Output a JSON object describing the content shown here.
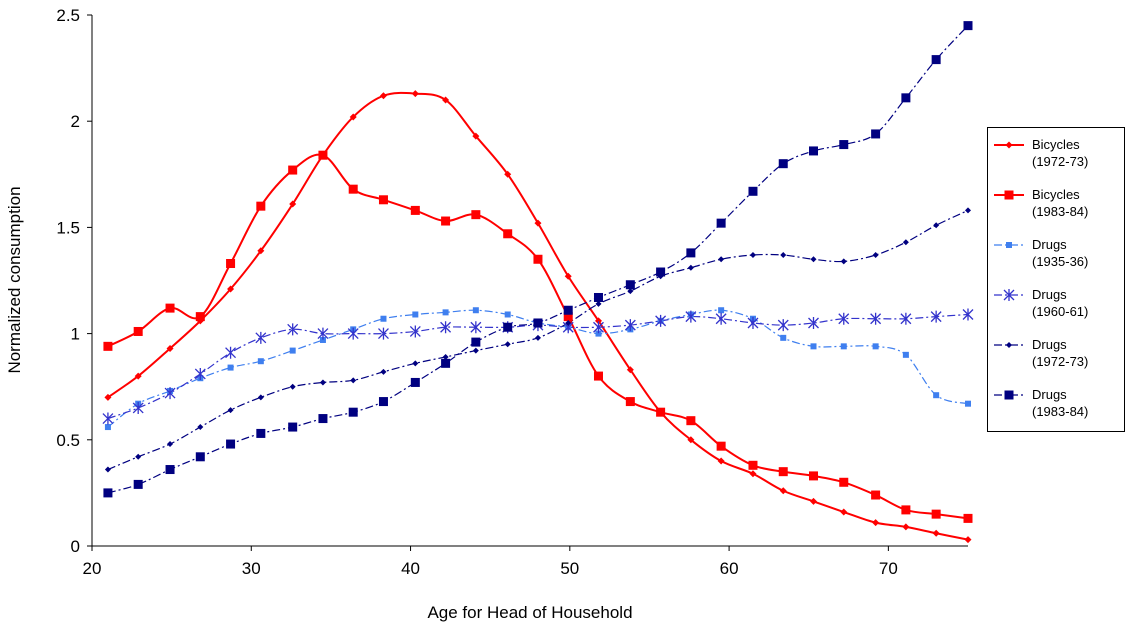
{
  "chart_data": {
    "type": "line",
    "x_label": "Age for Head of Household",
    "y_label": "Normalized consumption",
    "x": [
      21.0,
      22.9,
      24.9,
      26.8,
      28.7,
      30.6,
      32.6,
      34.5,
      36.4,
      38.3,
      40.3,
      42.2,
      44.1,
      46.1,
      48.0,
      49.9,
      51.8,
      53.8,
      55.7,
      57.6,
      59.5,
      61.5,
      63.4,
      65.3,
      67.2,
      69.2,
      71.1,
      73.0,
      75.0
    ],
    "xlim": [
      20,
      75
    ],
    "xticks": [
      20,
      30,
      40,
      50,
      60,
      70
    ],
    "ylim": [
      0,
      2.5
    ],
    "yticks": [
      0,
      0.5,
      1,
      1.5,
      2,
      2.5
    ],
    "grid": false,
    "smooth": true,
    "legend": "right",
    "series": [
      {
        "name": "Bicycles (1972-73)",
        "color": "#ff0000",
        "marker": "diamond",
        "line_style": "solid",
        "values": [
          0.7,
          0.8,
          0.93,
          1.06,
          1.21,
          1.39,
          1.61,
          1.84,
          2.02,
          2.12,
          2.13,
          2.1,
          1.93,
          1.75,
          1.52,
          1.27,
          1.06,
          0.83,
          0.63,
          0.5,
          0.4,
          0.34,
          0.26,
          0.21,
          0.16,
          0.11,
          0.09,
          0.06,
          0.03
        ]
      },
      {
        "name": "Bicycles (1983-84)",
        "color": "#ff0000",
        "marker": "square",
        "line_style": "solid",
        "values": [
          0.94,
          1.01,
          1.12,
          1.08,
          1.33,
          1.6,
          1.77,
          1.84,
          1.68,
          1.63,
          1.58,
          1.53,
          1.56,
          1.47,
          1.35,
          1.08,
          0.8,
          0.68,
          0.63,
          0.59,
          0.47,
          0.38,
          0.35,
          0.33,
          0.3,
          0.24,
          0.17,
          0.15,
          0.13
        ]
      },
      {
        "name": "Drugs (1935-36)",
        "color": "#3f7fef",
        "marker": "square-small",
        "line_style": "dashdot",
        "values": [
          0.56,
          0.67,
          0.73,
          0.79,
          0.84,
          0.87,
          0.92,
          0.97,
          1.02,
          1.07,
          1.09,
          1.1,
          1.11,
          1.09,
          1.05,
          1.03,
          1.0,
          1.02,
          1.06,
          1.09,
          1.11,
          1.07,
          0.98,
          0.94,
          0.94,
          0.94,
          0.9,
          0.71,
          0.67
        ]
      },
      {
        "name": "Drugs (1960-61)",
        "color": "#3333cc",
        "marker": "star",
        "line_style": "dashdot",
        "values": [
          0.6,
          0.65,
          0.72,
          0.81,
          0.91,
          0.98,
          1.02,
          1.0,
          1.0,
          1.0,
          1.01,
          1.03,
          1.03,
          1.03,
          1.04,
          1.03,
          1.03,
          1.04,
          1.06,
          1.08,
          1.07,
          1.05,
          1.04,
          1.05,
          1.07,
          1.07,
          1.07,
          1.08,
          1.09
        ]
      },
      {
        "name": "Drugs (1972-73)",
        "color": "#000080",
        "marker": "diamond-small",
        "line_style": "dashdot",
        "values": [
          0.36,
          0.42,
          0.48,
          0.56,
          0.64,
          0.7,
          0.75,
          0.77,
          0.78,
          0.82,
          0.86,
          0.89,
          0.92,
          0.95,
          0.98,
          1.05,
          1.14,
          1.2,
          1.27,
          1.31,
          1.35,
          1.37,
          1.37,
          1.35,
          1.34,
          1.37,
          1.43,
          1.51,
          1.58
        ]
      },
      {
        "name": "Drugs (1983-84)",
        "color": "#000080",
        "marker": "square",
        "line_style": "dashdot",
        "values": [
          0.25,
          0.29,
          0.36,
          0.42,
          0.48,
          0.53,
          0.56,
          0.6,
          0.63,
          0.68,
          0.77,
          0.86,
          0.96,
          1.03,
          1.05,
          1.11,
          1.17,
          1.23,
          1.29,
          1.38,
          1.52,
          1.67,
          1.8,
          1.86,
          1.89,
          1.94,
          2.11,
          2.29,
          2.45
        ]
      }
    ]
  }
}
